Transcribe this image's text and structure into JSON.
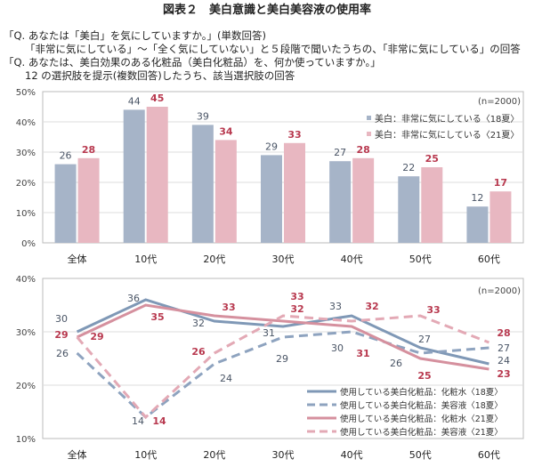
{
  "title": "図表２　美白意識と美白美容液の使用率",
  "questions": [
    "「Q. あなたは「美白」を気にしていますか。」(単数回答)",
    "「非常に気にしている」～「全く気にしていない」と５段階で聞いたうちの、「非常に気にしている」の回答",
    "「Q. あなたは、美白効果のある化粧品（美白化粧品）を、何か使っていますか。」",
    "12 の選択肢を提示(複数回答)したうち、該当選択肢の回答"
  ],
  "chart_data": [
    {
      "type": "bar",
      "categories": [
        "全体",
        "10代",
        "20代",
        "30代",
        "40代",
        "50代",
        "60代"
      ],
      "ylim": [
        0,
        50
      ],
      "yticks": [
        "0%",
        "10%",
        "20%",
        "30%",
        "40%",
        "50%"
      ],
      "annotation": "(n=2000)",
      "grid": true,
      "legend_position": "top-right",
      "series": [
        {
          "name": "美白：非常に気にしている〈18夏〉",
          "values": [
            26,
            44,
            39,
            29,
            27,
            22,
            12
          ],
          "color": "#a6b4c8",
          "label_color": "#4a5566"
        },
        {
          "name": "美白：非常に気にしている〈21夏〉",
          "values": [
            28,
            45,
            34,
            33,
            28,
            25,
            17
          ],
          "color": "#e8b7c1",
          "label_color": "#b8394f"
        }
      ]
    },
    {
      "type": "line",
      "categories": [
        "全体",
        "10代",
        "20代",
        "30代",
        "40代",
        "50代",
        "60代"
      ],
      "ylim": [
        10,
        40
      ],
      "yticks": [
        "10%",
        "20%",
        "30%",
        "40%"
      ],
      "annotation": "(n=2000)",
      "grid": true,
      "legend_position": "bottom-right",
      "series": [
        {
          "name": "使用している美白化粧品：化粧水〈18夏〉",
          "values": [
            30,
            36,
            32,
            31,
            33,
            27,
            24
          ],
          "color": "#7f98b6",
          "dash": false,
          "label_color": "#4a5566"
        },
        {
          "name": "使用している美白化粧品：美容液〈18夏〉",
          "values": [
            26,
            14,
            24,
            29,
            30,
            26,
            27
          ],
          "color": "#8ea3bf",
          "dash": true,
          "label_color": "#4a5566"
        },
        {
          "name": "使用している美白化粧品：化粧水〈21夏〉",
          "values": [
            29,
            35,
            33,
            32,
            31,
            25,
            23
          ],
          "color": "#d5909e",
          "dash": false,
          "label_color": "#b8394f"
        },
        {
          "name": "使用している美白化粧品：美容液〈21夏〉",
          "values": [
            29,
            14,
            26,
            33,
            32,
            33,
            28
          ],
          "color": "#e3a9b5",
          "dash": true,
          "label_color": "#b8394f"
        }
      ]
    }
  ]
}
